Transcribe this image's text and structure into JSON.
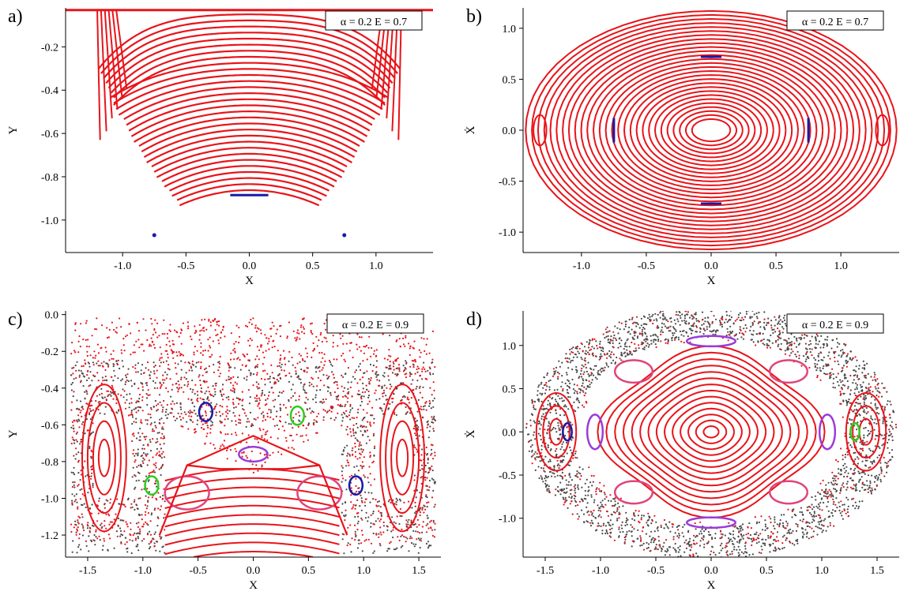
{
  "colors": {
    "red": "#e8141a",
    "blue": "#1a1aa6",
    "gray": "#4a4a4a",
    "green": "#2ecc1f",
    "purple": "#9a3cd8",
    "pink": "#e0447a",
    "axis": "#000000"
  },
  "chart_data": [
    {
      "panel_label": "a)",
      "type": "scatter",
      "annotation": "α = 0.2  E = 0.7",
      "xlabel": "X",
      "ylabel": "Y",
      "xlim": [
        -1.45,
        1.45
      ],
      "ylim": [
        -1.15,
        -0.02
      ],
      "xticks": [
        -1.0,
        -0.5,
        0.0,
        0.5,
        1.0
      ],
      "xtick_labels": [
        "-1.0",
        "-0.5",
        "0.0",
        "0.5",
        "1.0"
      ],
      "yticks": [
        -0.2,
        -0.4,
        -0.6,
        -0.8,
        -1.0
      ],
      "ytick_labels": [
        "-0.2",
        "-0.4",
        "-0.6",
        "-0.8",
        "-1.0"
      ],
      "orbits": {
        "red_curves": {
          "count": 30,
          "family": "downward-opening arcs (regular orbits)"
        },
        "blue": [
          {
            "x": [
              -0.15,
              0.15
            ],
            "y": -0.885
          },
          {
            "x": -0.75,
            "y": -1.07
          },
          {
            "x": 0.75,
            "y": -1.07
          }
        ]
      }
    },
    {
      "panel_label": "b)",
      "type": "scatter",
      "annotation": "α = 0.2  E = 0.7",
      "xlabel": "X",
      "ylabel": "Ẋ",
      "xlim": [
        -1.45,
        1.45
      ],
      "ylim": [
        -1.2,
        1.2
      ],
      "xticks": [
        -1.0,
        -0.5,
        0.0,
        0.5,
        1.0
      ],
      "xtick_labels": [
        "-1.0",
        "-0.5",
        "0.0",
        "0.5",
        "1.0"
      ],
      "yticks": [
        1.0,
        0.5,
        0.0,
        -0.5,
        -1.0
      ],
      "ytick_labels": [
        "1.0",
        "0.5",
        "0.0",
        "-0.5",
        "-1.0"
      ],
      "orbits": {
        "red_curves": {
          "count": 28,
          "family": "concentric ellipses around origin"
        },
        "blue": [
          {
            "x": 0.0,
            "y": 0.72
          },
          {
            "x": 0.0,
            "y": -0.72
          },
          {
            "x": -0.75,
            "y": 0.0
          },
          {
            "x": 0.75,
            "y": 0.0
          }
        ]
      }
    },
    {
      "panel_label": "c)",
      "type": "scatter",
      "annotation": "α = 0.2  E = 0.9",
      "xlabel": "X",
      "ylabel": "Y",
      "xlim": [
        -1.7,
        1.7
      ],
      "ylim": [
        -1.32,
        0.02
      ],
      "xticks": [
        -1.5,
        -1.0,
        -0.5,
        0.0,
        0.5,
        1.0,
        1.5
      ],
      "xtick_labels": [
        "-1.5",
        "-1.0",
        "-0.5",
        "0.0",
        "0.5",
        "1.0",
        "1.5"
      ],
      "yticks": [
        0.0,
        -0.2,
        -0.4,
        -0.6,
        -0.8,
        -1.0,
        -1.2
      ],
      "ytick_labels": [
        "0.0",
        "-0.2",
        "-0.4",
        "-0.6",
        "-0.8",
        "-1.0",
        "-1.2"
      ],
      "orbits": {
        "chaotic_sea": "red and gray scattered points",
        "islands": [
          {
            "color": "blue",
            "x": -0.43,
            "y": -0.53
          },
          {
            "color": "green",
            "x": 0.4,
            "y": -0.55
          },
          {
            "color": "green",
            "x": -0.92,
            "y": -0.93
          },
          {
            "color": "blue",
            "x": 0.93,
            "y": -0.93
          },
          {
            "color": "purple",
            "x": 0.0,
            "y": -0.76
          },
          {
            "color": "pink",
            "x": -0.6,
            "y": -0.97
          },
          {
            "color": "pink",
            "x": 0.6,
            "y": -0.97
          }
        ]
      }
    },
    {
      "panel_label": "d)",
      "type": "scatter",
      "annotation": "α = 0.2  E = 0.9",
      "xlabel": "X",
      "ylabel": "Ẋ",
      "xlim": [
        -1.7,
        1.7
      ],
      "ylim": [
        -1.45,
        1.4
      ],
      "xticks": [
        -1.5,
        -1.0,
        -0.5,
        0.0,
        0.5,
        1.0,
        1.5
      ],
      "xtick_labels": [
        "-1.5",
        "-1.0",
        "-0.5",
        "0.0",
        "0.5",
        "1.0",
        "1.5"
      ],
      "yticks": [
        1.0,
        0.5,
        0.0,
        -0.5,
        -1.0
      ],
      "ytick_labels": [
        "1.0",
        "0.5",
        "0.0",
        "-0.5",
        "-1.0"
      ],
      "orbits": {
        "chaotic_sea": "gray band with red points",
        "islands": [
          {
            "color": "purple",
            "x": 0.0,
            "y": 1.05
          },
          {
            "color": "purple",
            "x": 0.0,
            "y": -1.05
          },
          {
            "color": "purple",
            "x": -1.05,
            "y": 0.0
          },
          {
            "color": "purple",
            "x": 1.05,
            "y": 0.0
          },
          {
            "color": "blue",
            "x": -1.3,
            "y": 0.0
          },
          {
            "color": "green",
            "x": 1.3,
            "y": 0.0
          }
        ]
      }
    }
  ]
}
